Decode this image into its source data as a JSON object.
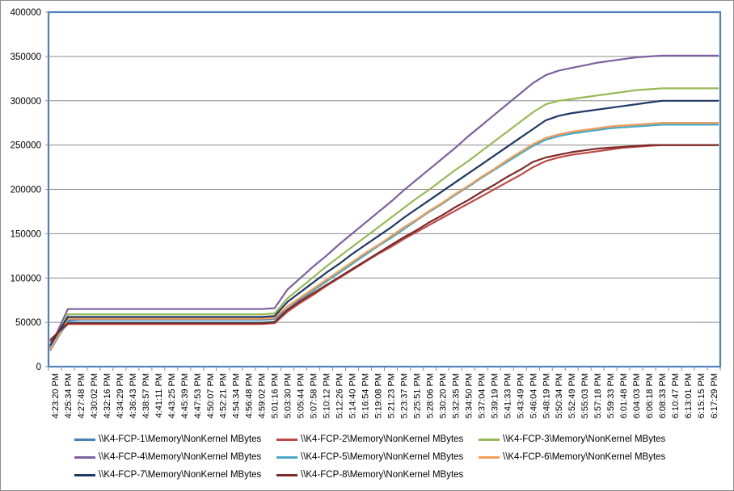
{
  "chart_data": {
    "type": "line",
    "title": "",
    "xlabel": "",
    "ylabel": "",
    "ylim": [
      0,
      400000
    ],
    "yticks": [
      0,
      50000,
      100000,
      150000,
      200000,
      250000,
      300000,
      350000,
      400000
    ],
    "ytick_labels": [
      "0",
      "50000",
      "100000",
      "150000",
      "200000",
      "250000",
      "300000",
      "350000",
      "400000"
    ],
    "grid": "horizontal",
    "legend_position": "bottom",
    "x_tick_labels": [
      "4:23:20 PM",
      "4:25:34 PM",
      "4:27:48 PM",
      "4:30:02 PM",
      "4:32:16 PM",
      "4:34:29 PM",
      "4:36:43 PM",
      "4:38:57 PM",
      "4:41:11 PM",
      "4:43:25 PM",
      "4:45:39 PM",
      "4:47:53 PM",
      "4:50:07 PM",
      "4:52:21 PM",
      "4:54:34 PM",
      "4:56:48 PM",
      "4:59:02 PM",
      "5:01:16 PM",
      "5:03:30 PM",
      "5:05:44 PM",
      "5:07:58 PM",
      "5:10:12 PM",
      "5:12:26 PM",
      "5:14:40 PM",
      "5:16:54 PM",
      "5:19:08 PM",
      "5:21:23 PM",
      "5:23:37 PM",
      "5:25:51 PM",
      "5:28:06 PM",
      "5:30:20 PM",
      "5:32:35 PM",
      "5:34:50 PM",
      "5:37:04 PM",
      "5:39:19 PM",
      "5:41:33 PM",
      "5:43:49 PM",
      "5:46:04 PM",
      "5:48:19 PM",
      "5:50:34 PM",
      "5:52:49 PM",
      "5:55:03 PM",
      "5:57:18 PM",
      "5:59:33 PM",
      "6:01:48 PM",
      "6:04:03 PM",
      "6:06:18 PM",
      "6:08:33 PM",
      "6:10:47 PM",
      "6:13:01 PM",
      "6:15:15 PM",
      "6:17:29 PM"
    ],
    "series": [
      {
        "name": "\\\\K4-FCP-1\\Memory\\NonKernel MBytes",
        "color": "#4a7ebb",
        "values": [
          18000,
          52000,
          53000,
          53000,
          53000,
          53000,
          53000,
          53000,
          53000,
          53000,
          53000,
          53000,
          53000,
          53000,
          53000,
          53000,
          53000,
          54000,
          65000,
          76000,
          86000,
          96000,
          106000,
          116000,
          126000,
          136000,
          147000,
          157000,
          166000,
          175000,
          184000,
          194000,
          203000,
          213000,
          222000,
          232000,
          241000,
          250000,
          258000,
          262000,
          265000,
          267000,
          269000,
          271000,
          272000,
          273000,
          274000,
          275000,
          275000,
          275000,
          275000,
          275000
        ]
      },
      {
        "name": "\\\\K4-FCP-2\\Memory\\NonKernel MBytes",
        "color": "#be4b48",
        "values": [
          28000,
          48000,
          48000,
          48000,
          48000,
          48000,
          48000,
          48000,
          48000,
          48000,
          48000,
          48000,
          48000,
          48000,
          48000,
          48000,
          48000,
          49000,
          62000,
          72000,
          81000,
          91000,
          100000,
          109000,
          118000,
          127000,
          135000,
          144000,
          152000,
          160000,
          168000,
          176000,
          184000,
          192000,
          200000,
          208000,
          216000,
          225000,
          232000,
          236000,
          239000,
          241000,
          243000,
          245000,
          247000,
          248000,
          249000,
          250000,
          250000,
          250000,
          250000,
          250000
        ]
      },
      {
        "name": "\\\\K4-FCP-3\\Memory\\NonKernel MBytes",
        "color": "#98b954",
        "values": [
          20000,
          59000,
          59000,
          59000,
          59000,
          59000,
          59000,
          59000,
          59000,
          59000,
          59000,
          59000,
          59000,
          59000,
          59000,
          59000,
          59000,
          60000,
          77000,
          89000,
          101000,
          113000,
          124000,
          135000,
          146000,
          157000,
          168000,
          179000,
          190000,
          200000,
          211000,
          222000,
          232000,
          243000,
          254000,
          265000,
          276000,
          287000,
          296000,
          300000,
          302000,
          304000,
          306000,
          308000,
          310000,
          312000,
          313000,
          314000,
          314000,
          314000,
          314000,
          314000
        ]
      },
      {
        "name": "\\\\K4-FCP-4\\Memory\\NonKernel MBytes",
        "color": "#7d60a0",
        "values": [
          22000,
          65000,
          65000,
          65000,
          65000,
          65000,
          65000,
          65000,
          65000,
          65000,
          65000,
          65000,
          65000,
          65000,
          65000,
          65000,
          65000,
          66000,
          87000,
          100000,
          113000,
          125000,
          138000,
          150000,
          162000,
          174000,
          186000,
          199000,
          211000,
          223000,
          235000,
          247000,
          260000,
          272000,
          284000,
          296000,
          308000,
          320000,
          329000,
          334000,
          337000,
          340000,
          343000,
          345000,
          347000,
          349000,
          350000,
          351000,
          351000,
          351000,
          351000,
          351000
        ]
      },
      {
        "name": "\\\\K4-FCP-5\\Memory\\NonKernel MBytes",
        "color": "#46aac5",
        "values": [
          21000,
          50000,
          50000,
          50000,
          50000,
          50000,
          50000,
          50000,
          50000,
          50000,
          50000,
          50000,
          50000,
          50000,
          50000,
          50000,
          50000,
          51000,
          65000,
          75000,
          86000,
          96000,
          106000,
          116000,
          126000,
          136000,
          145000,
          155000,
          165000,
          175000,
          184000,
          194000,
          203000,
          213000,
          222000,
          231000,
          240000,
          249000,
          256000,
          260000,
          263000,
          265000,
          267000,
          269000,
          270000,
          271000,
          272000,
          273000,
          273000,
          273000,
          273000,
          273000
        ]
      },
      {
        "name": "\\\\K4-FCP-6\\Memory\\NonKernel MBytes",
        "color": "#f59d56",
        "values": [
          19000,
          54000,
          54000,
          54000,
          54000,
          54000,
          54000,
          54000,
          54000,
          54000,
          54000,
          54000,
          54000,
          54000,
          54000,
          54000,
          54000,
          55000,
          68000,
          78000,
          88000,
          98000,
          108000,
          118000,
          128000,
          137000,
          147000,
          157000,
          166000,
          176000,
          185000,
          195000,
          204000,
          214000,
          223000,
          233000,
          242000,
          251000,
          258000,
          262000,
          265000,
          267000,
          269000,
          271000,
          272000,
          273000,
          274000,
          275000,
          275000,
          275000,
          275000,
          275000
        ]
      },
      {
        "name": "\\\\K4-FCP-7\\Memory\\NonKernel MBytes",
        "color": "#1f3864",
        "values": [
          24000,
          56000,
          56000,
          56000,
          56000,
          56000,
          56000,
          56000,
          56000,
          56000,
          56000,
          56000,
          56000,
          56000,
          56000,
          56000,
          56000,
          57000,
          73000,
          84000,
          95000,
          106000,
          116000,
          127000,
          137000,
          147000,
          157000,
          168000,
          178000,
          188000,
          198000,
          208000,
          218000,
          228000,
          238000,
          248000,
          258000,
          268000,
          278000,
          283000,
          286000,
          288000,
          290000,
          292000,
          294000,
          296000,
          298000,
          300000,
          300000,
          300000,
          300000,
          300000
        ]
      },
      {
        "name": "\\\\K4-FCP-8\\Memory\\NonKernel MBytes",
        "color": "#7b2a28",
        "values": [
          30000,
          49000,
          49000,
          49000,
          49000,
          49000,
          49000,
          49000,
          49000,
          49000,
          49000,
          49000,
          49000,
          49000,
          49000,
          49000,
          49000,
          50000,
          64000,
          74000,
          83000,
          92000,
          101000,
          110000,
          119000,
          128000,
          137000,
          146000,
          154000,
          163000,
          171000,
          180000,
          188000,
          197000,
          205000,
          214000,
          222000,
          231000,
          236000,
          239000,
          242000,
          244000,
          246000,
          247000,
          248000,
          249000,
          250000,
          250000,
          250000,
          250000,
          250000,
          250000
        ]
      }
    ]
  }
}
